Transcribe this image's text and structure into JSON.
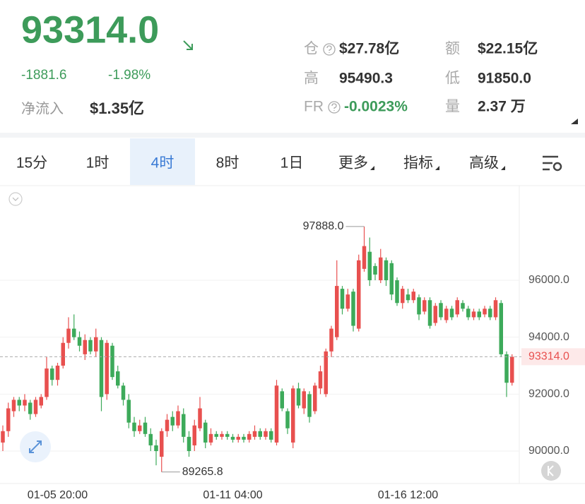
{
  "header": {
    "price": "93314.0",
    "change": "-1881.6",
    "change_pct": "-1.98%",
    "net_inflow_label": "净流入",
    "net_inflow": "$1.35亿",
    "stats": [
      {
        "label": "仓",
        "value": "$27.78亿"
      },
      {
        "label": "额",
        "value": "$22.15亿"
      },
      {
        "label": "高",
        "value": "95490.3"
      },
      {
        "label": "低",
        "value": "91850.0"
      },
      {
        "label": "FR",
        "value": "-0.0023%"
      },
      {
        "label": "量",
        "value": "2.37 万"
      }
    ]
  },
  "tabs": [
    "15分",
    "1时",
    "4时",
    "8时",
    "1日",
    "更多",
    "指标",
    "高级"
  ],
  "active_tab": 2,
  "chart_data": {
    "type": "candlestick",
    "categories": [
      null,
      null,
      null,
      null,
      null,
      null,
      null,
      null,
      null,
      null,
      "01-05 20:00",
      null,
      null,
      null,
      null,
      null,
      null,
      null,
      null,
      null,
      null,
      null,
      null,
      null,
      null,
      null,
      null,
      null,
      null,
      null,
      null,
      null,
      null,
      null,
      null,
      null,
      null,
      null,
      null,
      null,
      null,
      null,
      "01-11 04:00",
      null,
      null,
      null,
      null,
      null,
      null,
      null,
      null,
      null,
      null,
      null,
      null,
      null,
      null,
      null,
      null,
      null,
      null,
      null,
      null,
      null,
      null,
      null,
      null,
      null,
      null,
      null,
      null,
      null,
      null,
      null,
      "01-16 12:00",
      null,
      null,
      null,
      null,
      null,
      null,
      null,
      null,
      null,
      null,
      null,
      null,
      null,
      null,
      null,
      null,
      null,
      null,
      null
    ],
    "ohlc": [
      [
        90300,
        90900,
        90000,
        90700
      ],
      [
        90700,
        91700,
        90500,
        91500
      ],
      [
        91400,
        91900,
        91200,
        91800
      ],
      [
        91800,
        91900,
        91400,
        91600
      ],
      [
        91600,
        92000,
        91400,
        91800
      ],
      [
        91700,
        91800,
        91100,
        91300
      ],
      [
        91300,
        91900,
        91200,
        91800
      ],
      [
        91600,
        92000,
        91500,
        91900
      ],
      [
        91900,
        93300,
        91800,
        92900
      ],
      [
        92900,
        93000,
        92300,
        92500
      ],
      [
        92500,
        93100,
        92300,
        93000
      ],
      [
        93000,
        94000,
        92900,
        93800
      ],
      [
        93800,
        94700,
        93600,
        94300
      ],
      [
        94300,
        94800,
        93900,
        94000
      ],
      [
        94000,
        94200,
        93500,
        93700
      ],
      [
        93400,
        94100,
        93200,
        93900
      ],
      [
        93900,
        94000,
        93400,
        93500
      ],
      [
        93500,
        94300,
        93300,
        94000
      ],
      [
        93900,
        94000,
        91400,
        91900
      ],
      [
        92000,
        93900,
        91800,
        93800
      ],
      [
        93700,
        93800,
        92500,
        92600
      ],
      [
        92800,
        93000,
        92200,
        92300
      ],
      [
        92300,
        92400,
        91600,
        91800
      ],
      [
        91800,
        92000,
        90800,
        91000
      ],
      [
        91000,
        91200,
        90500,
        90700
      ],
      [
        90700,
        91100,
        90600,
        90900
      ],
      [
        91000,
        91200,
        90500,
        90600
      ],
      [
        90600,
        90800,
        90000,
        90200
      ],
      [
        90200,
        90400,
        89500,
        90000
      ],
      [
        89800,
        90800,
        89265.8,
        90700
      ],
      [
        90700,
        91300,
        90500,
        91100
      ],
      [
        91200,
        91400,
        90700,
        90900
      ],
      [
        90900,
        91600,
        90800,
        91400
      ],
      [
        91300,
        91500,
        90300,
        90500
      ],
      [
        90500,
        90700,
        89800,
        90000
      ],
      [
        90200,
        91100,
        90000,
        90900
      ],
      [
        90800,
        91900,
        90700,
        91500
      ],
      [
        91000,
        91100,
        90100,
        90300
      ],
      [
        90300,
        90800,
        90200,
        90600
      ],
      [
        90600,
        90700,
        90400,
        90500
      ],
      [
        90500,
        90700,
        90400,
        90600
      ],
      [
        90600,
        90700,
        90400,
        90500
      ],
      [
        90500,
        90600,
        90300,
        90400
      ],
      [
        90400,
        90600,
        90300,
        90500
      ],
      [
        90500,
        90600,
        90300,
        90400
      ],
      [
        90400,
        90700,
        90300,
        90600
      ],
      [
        90500,
        90900,
        90400,
        90700
      ],
      [
        90700,
        90800,
        90400,
        90500
      ],
      [
        90500,
        90800,
        90400,
        90700
      ],
      [
        90700,
        90800,
        90300,
        90400
      ],
      [
        90300,
        92500,
        90200,
        92300
      ],
      [
        92100,
        92200,
        91400,
        91500
      ],
      [
        91400,
        91500,
        90600,
        90800
      ],
      [
        90300,
        92300,
        90100,
        92200
      ],
      [
        92200,
        92400,
        91500,
        91600
      ],
      [
        91500,
        92200,
        91300,
        92100
      ],
      [
        92000,
        92100,
        91000,
        91200
      ],
      [
        91400,
        92400,
        91300,
        92300
      ],
      [
        92200,
        93000,
        92000,
        92800
      ],
      [
        92000,
        93600,
        91900,
        93500
      ],
      [
        93500,
        94400,
        93300,
        94300
      ],
      [
        94000,
        96700,
        93900,
        95800
      ],
      [
        95700,
        95800,
        94800,
        95000
      ],
      [
        95000,
        95700,
        94900,
        95500
      ],
      [
        95600,
        95700,
        94200,
        94400
      ],
      [
        94300,
        96900,
        94200,
        96700
      ],
      [
        96400,
        97888,
        96300,
        97200
      ],
      [
        97000,
        97500,
        95800,
        96000
      ],
      [
        96500,
        96600,
        96000,
        96200
      ],
      [
        96000,
        97100,
        95900,
        96800
      ],
      [
        96700,
        96800,
        95800,
        96000
      ],
      [
        96600,
        96700,
        95300,
        95500
      ],
      [
        96000,
        96100,
        95100,
        95200
      ],
      [
        95200,
        95800,
        95000,
        95700
      ],
      [
        95500,
        95700,
        95200,
        95300
      ],
      [
        95300,
        95700,
        95200,
        95600
      ],
      [
        95400,
        95500,
        94600,
        94800
      ],
      [
        94900,
        95400,
        94800,
        95300
      ],
      [
        95300,
        95400,
        94300,
        94400
      ],
      [
        94500,
        95200,
        94400,
        95100
      ],
      [
        95200,
        95300,
        94600,
        94700
      ],
      [
        94600,
        95100,
        94500,
        95000
      ],
      [
        95000,
        95100,
        94600,
        94700
      ],
      [
        94800,
        95400,
        94700,
        95300
      ],
      [
        95200,
        95300,
        94900,
        95000
      ],
      [
        95000,
        95100,
        94600,
        94700
      ],
      [
        94700,
        95000,
        94600,
        94900
      ],
      [
        94900,
        95000,
        94600,
        94700
      ],
      [
        94800,
        95100,
        94700,
        95000
      ],
      [
        95000,
        95100,
        94600,
        94700
      ],
      [
        94700,
        95400,
        94600,
        95300
      ],
      [
        95200,
        95300,
        93300,
        93400
      ],
      [
        93400,
        93500,
        91900,
        92400
      ],
      [
        92400,
        93400,
        92300,
        93314.0
      ]
    ],
    "up_color": "#e8504f",
    "down_color": "#3daa5a",
    "ylim": [
      88860,
      99273
    ],
    "yticks": [
      {
        "value": 90000,
        "label": "90000.0"
      },
      {
        "value": 92000,
        "label": "92000.0"
      },
      {
        "value": 94000,
        "label": "94000.0"
      },
      {
        "value": 96000,
        "label": "96000.0"
      }
    ],
    "grid": true,
    "last_price": {
      "value": 93314.0,
      "label": "93314.0"
    },
    "annotations": [
      {
        "index": 66,
        "value": 97888,
        "label": "97888.0",
        "side": "left"
      },
      {
        "index": 29,
        "value": 89265.8,
        "label": "89265.8",
        "side": "right"
      }
    ]
  }
}
